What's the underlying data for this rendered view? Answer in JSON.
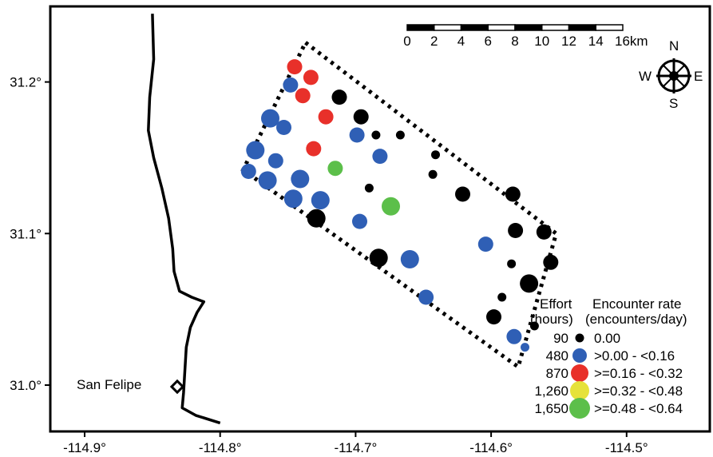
{
  "map": {
    "place_label": "San Felipe",
    "x_ticks": [
      {
        "value": -114.9,
        "label": "-114.9°"
      },
      {
        "value": -114.8,
        "label": "-114.8°"
      },
      {
        "value": -114.7,
        "label": "-114.7°"
      },
      {
        "value": -114.6,
        "label": "-114.6°"
      },
      {
        "value": -114.5,
        "label": "-114.5°"
      }
    ],
    "y_ticks": [
      {
        "value": 31.2,
        "label": "31.2°"
      },
      {
        "value": 31.1,
        "label": "31.1°"
      },
      {
        "value": 31.0,
        "label": "31.0°"
      }
    ],
    "x_range": [
      -114.93,
      -114.39
    ],
    "y_range": [
      30.975,
      31.245
    ],
    "scale_bar": {
      "ticks": [
        "0",
        "2",
        "4",
        "6",
        "8",
        "10",
        "12",
        "14",
        "16km"
      ]
    },
    "compass": {
      "north": "N",
      "south": "S",
      "east": "E",
      "west": "W"
    },
    "colors": {
      "none": "#000000",
      "low": "#2f5fb5",
      "mid": "#e8302a",
      "high": "#e6e23a",
      "top": "#5cbf4a"
    }
  },
  "legend": {
    "effort_header_1": "Effort",
    "effort_header_2": "(hours)",
    "rate_header_1": "Encounter rate",
    "rate_header_2": "(encounters/day)",
    "items": [
      {
        "effort": "90",
        "rate": "0.00",
        "color": "#000000",
        "size": 1
      },
      {
        "effort": "480",
        "rate": ">0.00 - <0.16",
        "color": "#2f5fb5",
        "size": 2
      },
      {
        "effort": "870",
        "rate": ">=0.16 - <0.32",
        "color": "#e8302a",
        "size": 3
      },
      {
        "effort": "1,260",
        "rate": ">=0.32 - <0.48",
        "color": "#e6e23a",
        "size": 4
      },
      {
        "effort": "1,650",
        "rate": ">=0.48 - <0.64",
        "color": "#5cbf4a",
        "size": 5
      }
    ]
  },
  "chart_data": {
    "type": "scatter",
    "x_label": "",
    "y_label": "",
    "xlim": [
      -114.93,
      -114.39
    ],
    "ylim": [
      30.975,
      31.245
    ],
    "points": [
      {
        "lon": -114.745,
        "lat": 31.21,
        "cls": "mid",
        "effort": 480
      },
      {
        "lon": -114.733,
        "lat": 31.203,
        "cls": "mid",
        "effort": 480
      },
      {
        "lon": -114.748,
        "lat": 31.198,
        "cls": "low",
        "effort": 480
      },
      {
        "lon": -114.739,
        "lat": 31.191,
        "cls": "mid",
        "effort": 480
      },
      {
        "lon": -114.712,
        "lat": 31.19,
        "cls": "none",
        "effort": 480
      },
      {
        "lon": -114.763,
        "lat": 31.176,
        "cls": "low",
        "effort": 870
      },
      {
        "lon": -114.753,
        "lat": 31.17,
        "cls": "low",
        "effort": 480
      },
      {
        "lon": -114.722,
        "lat": 31.177,
        "cls": "mid",
        "effort": 480
      },
      {
        "lon": -114.696,
        "lat": 31.177,
        "cls": "none",
        "effort": 480
      },
      {
        "lon": -114.699,
        "lat": 31.165,
        "cls": "low",
        "effort": 480
      },
      {
        "lon": -114.731,
        "lat": 31.156,
        "cls": "mid",
        "effort": 480
      },
      {
        "lon": -114.685,
        "lat": 31.165,
        "cls": "none",
        "effort": 90
      },
      {
        "lon": -114.667,
        "lat": 31.165,
        "cls": "none",
        "effort": 90
      },
      {
        "lon": -114.774,
        "lat": 31.155,
        "cls": "low",
        "effort": 870
      },
      {
        "lon": -114.759,
        "lat": 31.148,
        "cls": "low",
        "effort": 480
      },
      {
        "lon": -114.682,
        "lat": 31.151,
        "cls": "low",
        "effort": 480
      },
      {
        "lon": -114.641,
        "lat": 31.152,
        "cls": "none",
        "effort": 90
      },
      {
        "lon": -114.715,
        "lat": 31.143,
        "cls": "top",
        "effort": 480
      },
      {
        "lon": -114.779,
        "lat": 31.141,
        "cls": "low",
        "effort": 480
      },
      {
        "lon": -114.765,
        "lat": 31.135,
        "cls": "low",
        "effort": 870
      },
      {
        "lon": -114.741,
        "lat": 31.136,
        "cls": "low",
        "effort": 870
      },
      {
        "lon": -114.643,
        "lat": 31.139,
        "cls": "none",
        "effort": 90
      },
      {
        "lon": -114.69,
        "lat": 31.13,
        "cls": "none",
        "effort": 90
      },
      {
        "lon": -114.621,
        "lat": 31.126,
        "cls": "none",
        "effort": 480
      },
      {
        "lon": -114.584,
        "lat": 31.126,
        "cls": "none",
        "effort": 480
      },
      {
        "lon": -114.746,
        "lat": 31.123,
        "cls": "low",
        "effort": 870
      },
      {
        "lon": -114.726,
        "lat": 31.122,
        "cls": "low",
        "effort": 870
      },
      {
        "lon": -114.674,
        "lat": 31.118,
        "cls": "top",
        "effort": 870
      },
      {
        "lon": -114.729,
        "lat": 31.11,
        "cls": "none",
        "effort": 870
      },
      {
        "lon": -114.697,
        "lat": 31.108,
        "cls": "low",
        "effort": 480
      },
      {
        "lon": -114.582,
        "lat": 31.102,
        "cls": "none",
        "effort": 480
      },
      {
        "lon": -114.561,
        "lat": 31.101,
        "cls": "none",
        "effort": 480
      },
      {
        "lon": -114.604,
        "lat": 31.093,
        "cls": "low",
        "effort": 480
      },
      {
        "lon": -114.683,
        "lat": 31.084,
        "cls": "none",
        "effort": 870
      },
      {
        "lon": -114.66,
        "lat": 31.083,
        "cls": "low",
        "effort": 870
      },
      {
        "lon": -114.585,
        "lat": 31.08,
        "cls": "none",
        "effort": 90
      },
      {
        "lon": -114.556,
        "lat": 31.081,
        "cls": "none",
        "effort": 480
      },
      {
        "lon": -114.572,
        "lat": 31.067,
        "cls": "none",
        "effort": 870
      },
      {
        "lon": -114.648,
        "lat": 31.058,
        "cls": "low",
        "effort": 480
      },
      {
        "lon": -114.592,
        "lat": 31.058,
        "cls": "none",
        "effort": 90
      },
      {
        "lon": -114.598,
        "lat": 31.045,
        "cls": "none",
        "effort": 480
      },
      {
        "lon": -114.568,
        "lat": 31.039,
        "cls": "none",
        "effort": 90
      },
      {
        "lon": -114.583,
        "lat": 31.032,
        "cls": "low",
        "effort": 480
      },
      {
        "lon": -114.575,
        "lat": 31.025,
        "cls": "low",
        "effort": 90
      }
    ],
    "survey_polygon": [
      [
        -114.737,
        31.226
      ],
      [
        -114.552,
        31.1
      ],
      [
        -114.58,
        31.012
      ],
      [
        -114.783,
        31.142
      ]
    ],
    "coastline": [
      [
        -114.85,
        31.245
      ],
      [
        -114.849,
        31.215
      ],
      [
        -114.852,
        31.19
      ],
      [
        -114.853,
        31.168
      ],
      [
        -114.849,
        31.15
      ],
      [
        -114.843,
        31.13
      ],
      [
        -114.838,
        31.11
      ],
      [
        -114.835,
        31.09
      ],
      [
        -114.834,
        31.075
      ],
      [
        -114.83,
        31.062
      ],
      [
        -114.821,
        31.058
      ],
      [
        -114.812,
        31.055
      ],
      [
        -114.817,
        31.048
      ],
      [
        -114.822,
        31.038
      ],
      [
        -114.825,
        31.025
      ],
      [
        -114.826,
        31.01
      ],
      [
        -114.827,
        30.995
      ],
      [
        -114.828,
        30.985
      ],
      [
        -114.818,
        30.98
      ],
      [
        -114.8,
        30.975
      ]
    ],
    "san_felipe_point": [
      -114.828,
      30.986
    ]
  }
}
